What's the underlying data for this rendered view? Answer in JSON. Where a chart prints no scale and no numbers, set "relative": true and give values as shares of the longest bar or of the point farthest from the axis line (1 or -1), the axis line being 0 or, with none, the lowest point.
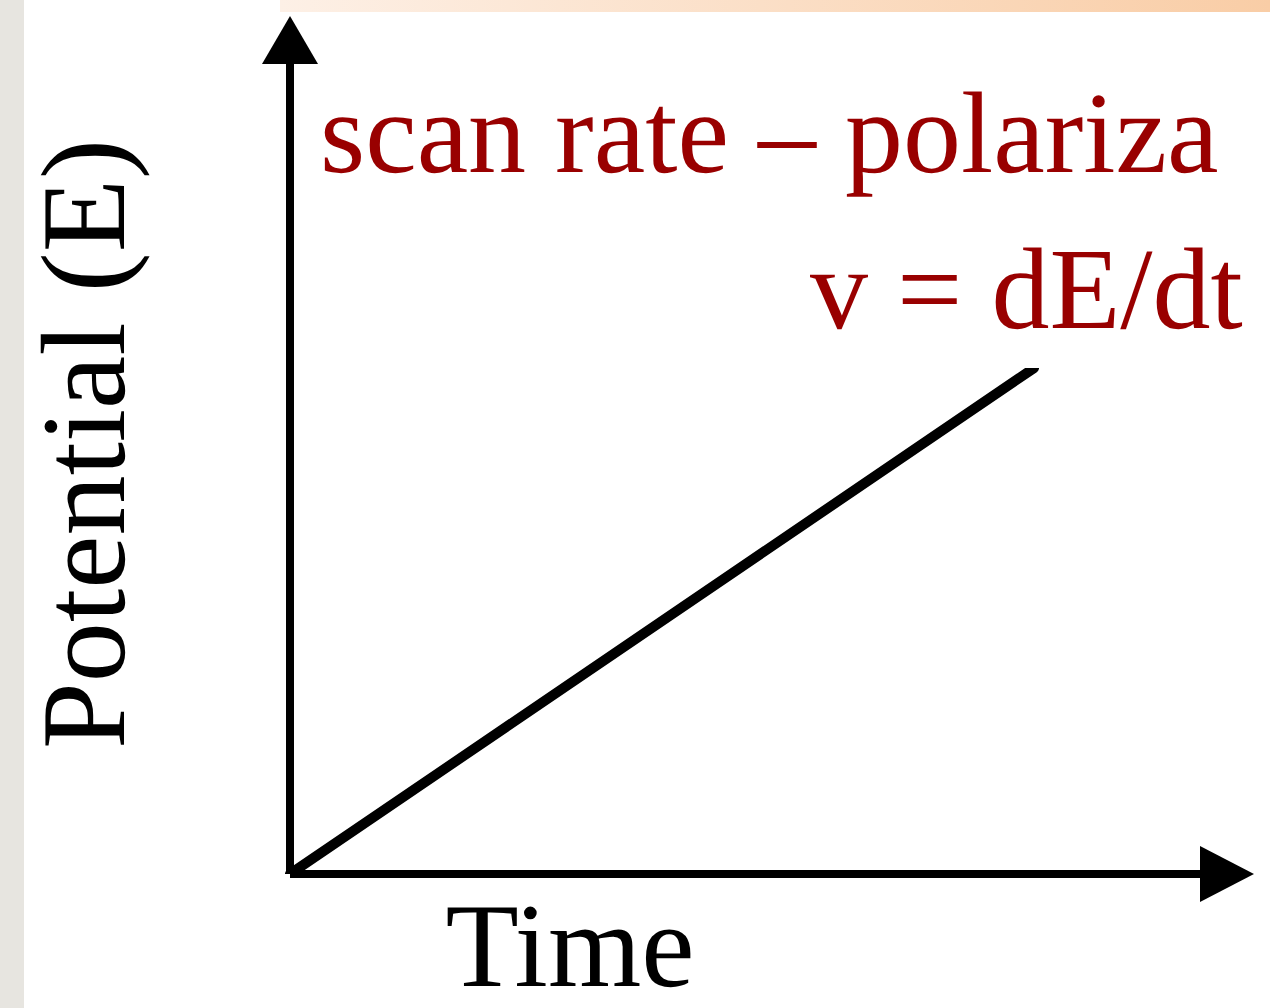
{
  "chart_data": {
    "type": "line",
    "relative": true,
    "xlabel": "Time",
    "ylabel": "Potential (E)",
    "annotations": [
      "scan rate – polariza",
      "v = dE/dt"
    ],
    "categories": [
      null,
      null
    ],
    "series": [
      {
        "color": "#000000",
        "values": [
          0,
          1
        ]
      }
    ],
    "marker": "none"
  }
}
